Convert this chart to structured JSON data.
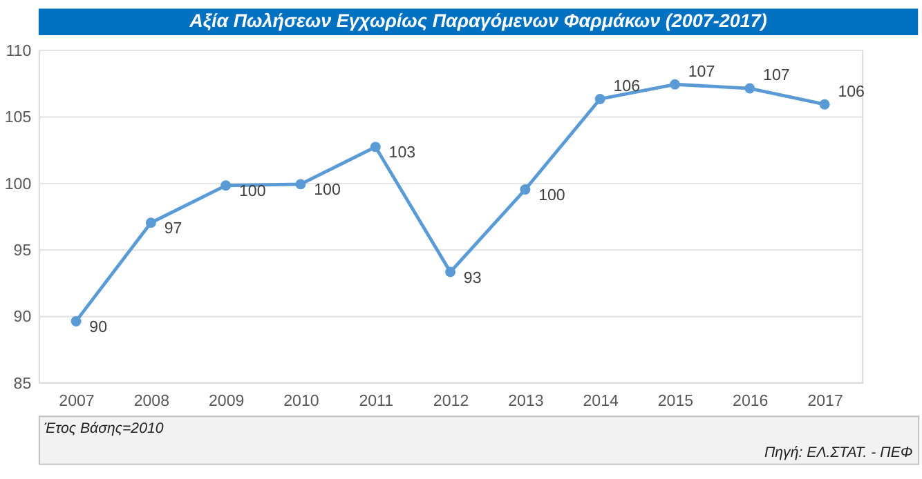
{
  "chart_data": {
    "type": "line",
    "title": "Αξία Πωλήσεων Εγχωρίως Παραγόμενων Φαρμάκων (2007-2017)",
    "categories": [
      "2007",
      "2008",
      "2009",
      "2010",
      "2011",
      "2012",
      "2013",
      "2014",
      "2015",
      "2016",
      "2017"
    ],
    "series": [
      {
        "color": "#5b9bd5",
        "values": [
          89.6,
          97.0,
          99.8,
          99.9,
          102.7,
          93.3,
          99.5,
          106.3,
          107.4,
          107.1,
          105.9
        ],
        "value_labels": [
          "90",
          "97",
          "100",
          "100",
          "103",
          "93",
          "100",
          "106",
          "107",
          "107",
          "106"
        ]
      }
    ],
    "ylim": [
      85,
      110
    ],
    "yticks": [
      85,
      90,
      95,
      100,
      105,
      110
    ],
    "grid": "y",
    "marker": "circle",
    "line_style": "solid",
    "annotations": [
      "Έτος Βάσης=2010",
      "Πηγή: ΕΛ.ΣΤΑΤ. - ΠΕΦ"
    ]
  }
}
